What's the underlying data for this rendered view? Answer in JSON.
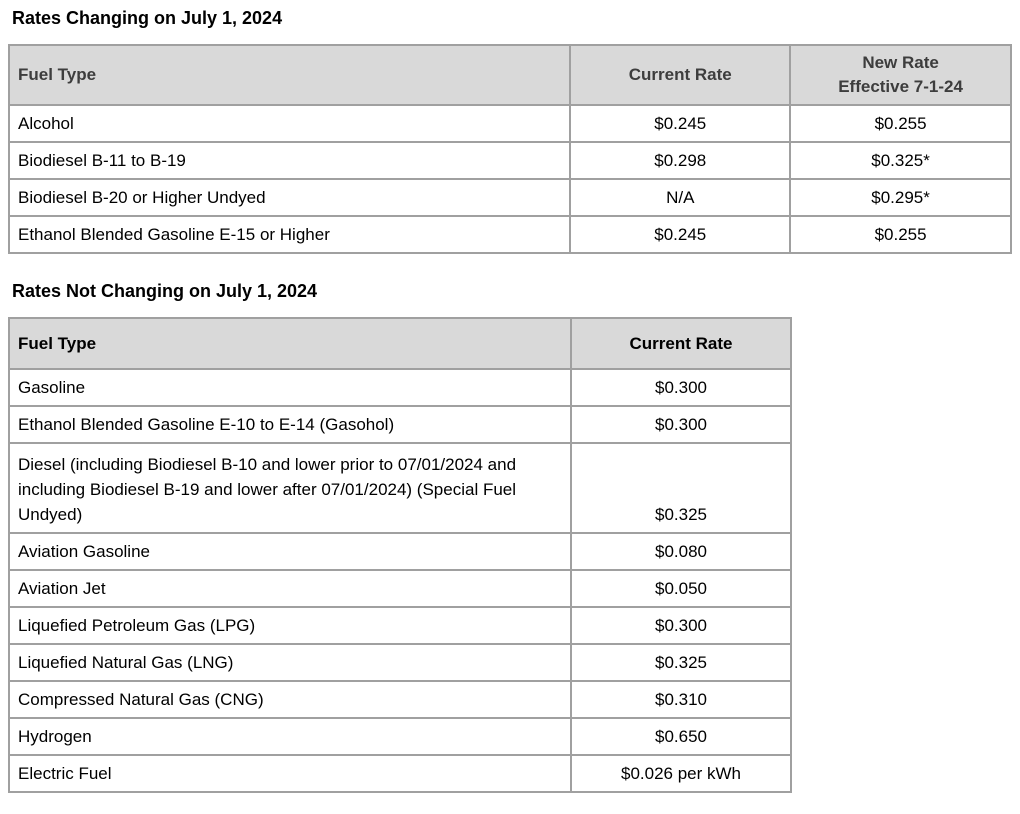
{
  "colors": {
    "header_bg": "#d9d9d9",
    "border": "#a0a0a0",
    "header_text": "#3d3d3d",
    "body_text": "#000000",
    "page_bg": "#ffffff"
  },
  "sections": [
    {
      "title": "Rates Changing on July 1, 2024",
      "columns": [
        "Fuel Type",
        "Current Rate",
        "New Rate\nEffective 7-1-24"
      ],
      "rows": [
        [
          "Alcohol",
          "$0.245",
          "$0.255"
        ],
        [
          "Biodiesel B-11 to B-19",
          "$0.298",
          "$0.325*"
        ],
        [
          "Biodiesel B-20 or Higher Undyed",
          "N/A",
          "$0.295*"
        ],
        [
          "Ethanol Blended Gasoline E-15 or Higher",
          "$0.245",
          "$0.255"
        ]
      ]
    },
    {
      "title": "Rates Not Changing on July 1, 2024",
      "columns": [
        "Fuel Type",
        "Current Rate"
      ],
      "rows": [
        [
          "Gasoline",
          "$0.300"
        ],
        [
          "Ethanol Blended Gasoline E-10 to E-14 (Gasohol)",
          "$0.300"
        ],
        [
          "Diesel (including Biodiesel B-10 and lower prior to 07/01/2024 and including Biodiesel B-19 and lower after 07/01/2024) (Special Fuel Undyed)",
          "$0.325"
        ],
        [
          "Aviation Gasoline",
          "$0.080"
        ],
        [
          "Aviation Jet",
          "$0.050"
        ],
        [
          "Liquefied Petroleum Gas (LPG)",
          "$0.300"
        ],
        [
          "Liquefied Natural Gas (LNG)",
          "$0.325"
        ],
        [
          "Compressed Natural Gas (CNG)",
          "$0.310"
        ],
        [
          "Hydrogen",
          "$0.650"
        ],
        [
          "Electric Fuel",
          "$0.026 per kWh"
        ]
      ]
    }
  ]
}
